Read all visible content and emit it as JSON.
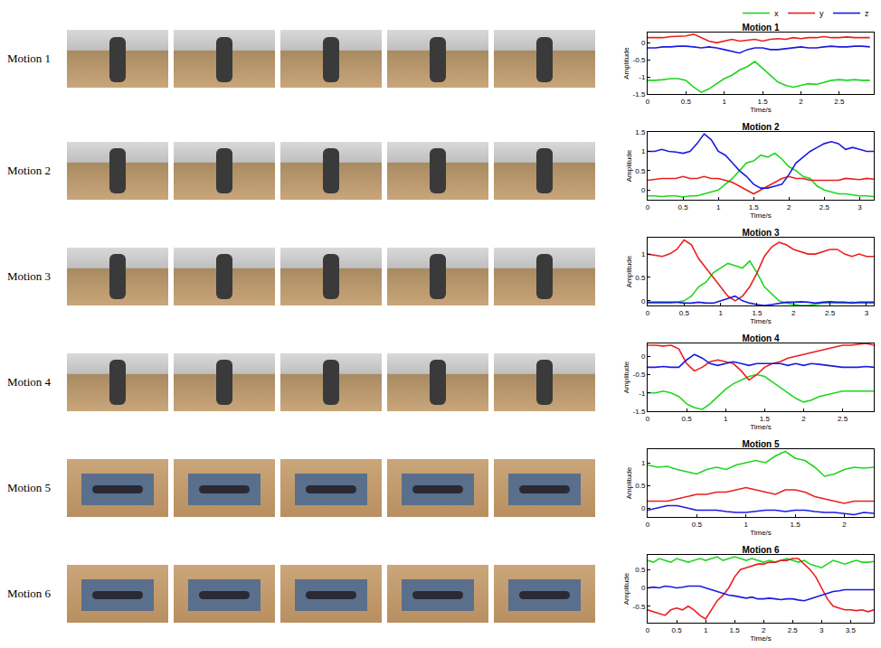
{
  "row_labels": [
    "Motion 1",
    "Motion 2",
    "Motion 3",
    "Motion 4",
    "Motion 5",
    "Motion 6"
  ],
  "chart_data": [
    {
      "type": "line",
      "title": "Motion 1",
      "x_label": "Time/s",
      "y_label": "Amplitude",
      "grid": false,
      "legend": "top right",
      "x": [
        0,
        0.1,
        0.2,
        0.3,
        0.4,
        0.5,
        0.6,
        0.7,
        0.8,
        0.9,
        1.0,
        1.1,
        1.2,
        1.3,
        1.4,
        1.5,
        1.6,
        1.7,
        1.8,
        1.9,
        2.0,
        2.1,
        2.2,
        2.3,
        2.4,
        2.5,
        2.6,
        2.7,
        2.8,
        2.9
      ],
      "series": [
        {
          "name": "x",
          "color": "#1fd61f",
          "values": [
            -1.1,
            -1.1,
            -1.08,
            -1.05,
            -1.05,
            -1.1,
            -1.3,
            -1.45,
            -1.35,
            -1.2,
            -1.05,
            -0.95,
            -0.8,
            -0.7,
            -0.55,
            -0.75,
            -0.95,
            -1.15,
            -1.25,
            -1.3,
            -1.25,
            -1.2,
            -1.22,
            -1.15,
            -1.1,
            -1.08,
            -1.1,
            -1.08,
            -1.1,
            -1.1
          ]
        },
        {
          "name": "y",
          "color": "#e8201e",
          "values": [
            0.15,
            0.15,
            0.15,
            0.18,
            0.2,
            0.2,
            0.25,
            0.15,
            0.05,
            0.0,
            0.05,
            0.1,
            0.05,
            0.08,
            0.1,
            0.05,
            0.1,
            0.12,
            0.1,
            0.15,
            0.12,
            0.15,
            0.15,
            0.18,
            0.15,
            0.15,
            0.17,
            0.15,
            0.15,
            0.15
          ]
        },
        {
          "name": "z",
          "color": "#1a1ae0",
          "values": [
            -0.15,
            -0.15,
            -0.12,
            -0.12,
            -0.1,
            -0.1,
            -0.12,
            -0.15,
            -0.12,
            -0.15,
            -0.2,
            -0.25,
            -0.3,
            -0.2,
            -0.15,
            -0.15,
            -0.2,
            -0.2,
            -0.18,
            -0.15,
            -0.12,
            -0.15,
            -0.15,
            -0.12,
            -0.1,
            -0.12,
            -0.12,
            -0.1,
            -0.1,
            -0.12
          ]
        }
      ],
      "xlim": [
        0,
        2.95
      ],
      "xticks": [
        0,
        0.5,
        1,
        1.5,
        2,
        2.5
      ],
      "ylim": [
        -1.5,
        0.3
      ],
      "yticks": [
        -1.5,
        -1,
        -0.5,
        0
      ]
    },
    {
      "type": "line",
      "title": "Motion 2",
      "x_label": "Time/s",
      "y_label": "Amplitude",
      "grid": false,
      "x": [
        0,
        0.1,
        0.2,
        0.3,
        0.4,
        0.5,
        0.6,
        0.7,
        0.8,
        0.9,
        1.0,
        1.1,
        1.2,
        1.3,
        1.4,
        1.5,
        1.6,
        1.7,
        1.8,
        1.9,
        2.0,
        2.1,
        2.2,
        2.3,
        2.4,
        2.5,
        2.6,
        2.7,
        2.8,
        2.9,
        3.0,
        3.1,
        3.2
      ],
      "series": [
        {
          "name": "x",
          "color": "#1fd61f",
          "values": [
            -0.15,
            -0.15,
            -0.17,
            -0.15,
            -0.15,
            -0.18,
            -0.15,
            -0.15,
            -0.1,
            -0.05,
            0.0,
            0.15,
            0.3,
            0.5,
            0.7,
            0.75,
            0.9,
            0.85,
            0.95,
            0.8,
            0.6,
            0.5,
            0.35,
            0.3,
            0.1,
            0.0,
            -0.05,
            -0.1,
            -0.1,
            -0.12,
            -0.15,
            -0.15,
            -0.17
          ]
        },
        {
          "name": "y",
          "color": "#e8201e",
          "values": [
            0.25,
            0.28,
            0.3,
            0.3,
            0.3,
            0.35,
            0.3,
            0.3,
            0.35,
            0.3,
            0.3,
            0.25,
            0.2,
            0.1,
            0.0,
            -0.1,
            0.0,
            0.1,
            0.2,
            0.3,
            0.35,
            0.3,
            0.3,
            0.25,
            0.25,
            0.25,
            0.25,
            0.25,
            0.3,
            0.28,
            0.27,
            0.3,
            0.28
          ]
        },
        {
          "name": "z",
          "color": "#1a1ae0",
          "values": [
            1.0,
            1.0,
            1.05,
            1.0,
            0.98,
            0.95,
            1.0,
            1.2,
            1.45,
            1.3,
            1.0,
            0.9,
            0.7,
            0.5,
            0.35,
            0.15,
            0.05,
            0.05,
            0.1,
            0.15,
            0.4,
            0.7,
            0.85,
            1.0,
            1.1,
            1.2,
            1.25,
            1.2,
            1.05,
            1.1,
            1.05,
            1.0,
            1.0
          ]
        }
      ],
      "xlim": [
        0,
        3.2
      ],
      "xticks": [
        0,
        0.5,
        1,
        1.5,
        2,
        2.5,
        3
      ],
      "ylim": [
        -0.25,
        1.5
      ],
      "yticks": [
        0,
        0.5,
        1,
        1.5
      ]
    },
    {
      "type": "line",
      "title": "Motion 3",
      "x_label": "Time/s",
      "y_label": "Amplitude",
      "grid": false,
      "x": [
        0,
        0.1,
        0.2,
        0.3,
        0.4,
        0.5,
        0.6,
        0.7,
        0.8,
        0.9,
        1.0,
        1.1,
        1.2,
        1.3,
        1.4,
        1.5,
        1.6,
        1.7,
        1.8,
        1.9,
        2.0,
        2.1,
        2.2,
        2.3,
        2.4,
        2.5,
        2.6,
        2.7,
        2.8,
        2.9,
        3.0,
        3.1
      ],
      "series": [
        {
          "name": "x",
          "color": "#1fd61f",
          "values": [
            -0.05,
            -0.05,
            -0.05,
            -0.05,
            -0.03,
            0.0,
            0.1,
            0.3,
            0.4,
            0.6,
            0.7,
            0.8,
            0.75,
            0.7,
            0.85,
            0.6,
            0.3,
            0.15,
            0.0,
            -0.05,
            -0.08,
            -0.1,
            -0.1,
            -0.08,
            -0.05,
            -0.05,
            -0.05,
            -0.05,
            -0.03,
            -0.05,
            -0.05,
            -0.05
          ]
        },
        {
          "name": "y",
          "color": "#e8201e",
          "values": [
            1.0,
            0.98,
            0.95,
            1.0,
            1.1,
            1.3,
            1.2,
            0.9,
            0.7,
            0.5,
            0.3,
            0.1,
            0.0,
            0.1,
            0.3,
            0.6,
            0.95,
            1.15,
            1.25,
            1.2,
            1.1,
            1.05,
            1.0,
            1.0,
            1.05,
            1.1,
            1.1,
            1.0,
            0.95,
            1.0,
            0.95,
            0.95
          ]
        },
        {
          "name": "z",
          "color": "#1a1ae0",
          "values": [
            -0.03,
            -0.03,
            -0.02,
            -0.03,
            -0.03,
            -0.05,
            -0.05,
            -0.03,
            -0.05,
            -0.05,
            0.0,
            0.05,
            0.1,
            0.0,
            -0.05,
            -0.08,
            -0.1,
            -0.08,
            -0.05,
            -0.03,
            -0.03,
            -0.02,
            -0.03,
            -0.05,
            -0.03,
            -0.02,
            -0.03,
            -0.03,
            -0.05,
            -0.03,
            -0.03,
            -0.03
          ]
        }
      ],
      "xlim": [
        0,
        3.1
      ],
      "xticks": [
        0,
        0.5,
        1,
        1.5,
        2,
        2.5,
        3
      ],
      "ylim": [
        -0.1,
        1.35
      ],
      "yticks": [
        0,
        0.5,
        1
      ]
    },
    {
      "type": "line",
      "title": "Motion 4",
      "x_label": "Time/s",
      "y_label": "Amplitude",
      "grid": false,
      "x": [
        0,
        0.1,
        0.2,
        0.3,
        0.4,
        0.5,
        0.6,
        0.7,
        0.8,
        0.9,
        1.0,
        1.1,
        1.2,
        1.3,
        1.4,
        1.5,
        1.6,
        1.7,
        1.8,
        1.9,
        2.0,
        2.1,
        2.2,
        2.3,
        2.4,
        2.5,
        2.6,
        2.7,
        2.8,
        2.9
      ],
      "series": [
        {
          "name": "x",
          "color": "#1fd61f",
          "values": [
            -1.0,
            -1.0,
            -0.95,
            -1.0,
            -1.1,
            -1.3,
            -1.4,
            -1.45,
            -1.3,
            -1.1,
            -0.9,
            -0.75,
            -0.65,
            -0.55,
            -0.5,
            -0.55,
            -0.7,
            -0.85,
            -1.0,
            -1.15,
            -1.25,
            -1.2,
            -1.1,
            -1.05,
            -1.0,
            -0.95,
            -0.95,
            -0.95,
            -0.95,
            -0.95
          ]
        },
        {
          "name": "y",
          "color": "#e8201e",
          "values": [
            0.3,
            0.3,
            0.28,
            0.3,
            0.2,
            -0.2,
            -0.4,
            -0.3,
            -0.15,
            -0.1,
            -0.15,
            -0.2,
            -0.4,
            -0.65,
            -0.5,
            -0.3,
            -0.2,
            -0.15,
            -0.05,
            0.0,
            0.05,
            0.1,
            0.15,
            0.2,
            0.25,
            0.3,
            0.3,
            0.32,
            0.35,
            0.3
          ]
        },
        {
          "name": "z",
          "color": "#1a1ae0",
          "values": [
            -0.3,
            -0.3,
            -0.28,
            -0.3,
            -0.3,
            -0.1,
            0.05,
            -0.05,
            -0.2,
            -0.25,
            -0.2,
            -0.15,
            -0.2,
            -0.25,
            -0.2,
            -0.2,
            -0.2,
            -0.2,
            -0.25,
            -0.2,
            -0.25,
            -0.2,
            -0.22,
            -0.25,
            -0.28,
            -0.3,
            -0.3,
            -0.3,
            -0.28,
            -0.3
          ]
        }
      ],
      "xlim": [
        0,
        2.9
      ],
      "xticks": [
        0,
        0.5,
        1,
        1.5,
        2,
        2.5
      ],
      "ylim": [
        -1.5,
        0.35
      ],
      "yticks": [
        -1.5,
        -1,
        -0.5,
        0
      ]
    },
    {
      "type": "line",
      "title": "Motion 5",
      "x_label": "Time/s",
      "y_label": "Amplitude",
      "grid": false,
      "x": [
        0,
        0.1,
        0.2,
        0.3,
        0.4,
        0.5,
        0.6,
        0.7,
        0.8,
        0.9,
        1.0,
        1.1,
        1.2,
        1.3,
        1.4,
        1.5,
        1.6,
        1.7,
        1.8,
        1.9,
        2.0,
        2.1,
        2.2,
        2.3
      ],
      "series": [
        {
          "name": "x",
          "color": "#1fd61f",
          "values": [
            0.95,
            0.9,
            0.92,
            0.85,
            0.8,
            0.75,
            0.85,
            0.9,
            0.85,
            0.95,
            1.0,
            1.05,
            1.0,
            1.15,
            1.25,
            1.1,
            1.05,
            0.9,
            0.7,
            0.75,
            0.85,
            0.9,
            0.88,
            0.9
          ]
        },
        {
          "name": "y",
          "color": "#e8201e",
          "values": [
            0.15,
            0.15,
            0.15,
            0.2,
            0.25,
            0.3,
            0.3,
            0.35,
            0.35,
            0.4,
            0.45,
            0.4,
            0.35,
            0.3,
            0.4,
            0.4,
            0.35,
            0.25,
            0.2,
            0.15,
            0.1,
            0.15,
            0.15,
            0.15
          ]
        },
        {
          "name": "z",
          "color": "#1a1ae0",
          "values": [
            -0.05,
            0.0,
            0.05,
            0.05,
            0.0,
            -0.05,
            -0.05,
            -0.05,
            -0.08,
            -0.1,
            -0.1,
            -0.08,
            -0.05,
            -0.05,
            -0.08,
            -0.05,
            -0.05,
            -0.08,
            -0.1,
            -0.1,
            -0.12,
            -0.15,
            -0.1,
            -0.12
          ]
        }
      ],
      "xlim": [
        0,
        2.3
      ],
      "xticks": [
        0,
        0.5,
        1,
        1.5,
        2
      ],
      "ylim": [
        -0.2,
        1.3
      ],
      "yticks": [
        0,
        0.5,
        1
      ]
    },
    {
      "type": "line",
      "title": "Motion 6",
      "x_label": "Time/s",
      "y_label": "Amplitude",
      "grid": false,
      "x": [
        0,
        0.1,
        0.2,
        0.3,
        0.4,
        0.5,
        0.6,
        0.7,
        0.8,
        0.9,
        1.0,
        1.1,
        1.2,
        1.3,
        1.4,
        1.5,
        1.6,
        1.7,
        1.8,
        1.9,
        2.0,
        2.1,
        2.2,
        2.3,
        2.4,
        2.5,
        2.6,
        2.7,
        2.8,
        2.9,
        3.0,
        3.1,
        3.2,
        3.3,
        3.4,
        3.5,
        3.6,
        3.7,
        3.8,
        3.9
      ],
      "series": [
        {
          "name": "x",
          "color": "#1fd61f",
          "values": [
            0.75,
            0.7,
            0.8,
            0.75,
            0.7,
            0.8,
            0.75,
            0.7,
            0.75,
            0.8,
            0.75,
            0.8,
            0.85,
            0.75,
            0.8,
            0.85,
            0.8,
            0.75,
            0.8,
            0.75,
            0.7,
            0.75,
            0.7,
            0.75,
            0.8,
            0.75,
            0.7,
            0.75,
            0.65,
            0.6,
            0.55,
            0.65,
            0.75,
            0.7,
            0.65,
            0.7,
            0.75,
            0.7,
            0.7,
            0.72
          ]
        },
        {
          "name": "y",
          "color": "#e8201e",
          "values": [
            -0.6,
            -0.65,
            -0.7,
            -0.75,
            -0.6,
            -0.55,
            -0.6,
            -0.5,
            -0.6,
            -0.75,
            -0.85,
            -0.6,
            -0.35,
            -0.2,
            0.0,
            0.3,
            0.5,
            0.55,
            0.6,
            0.65,
            0.65,
            0.7,
            0.7,
            0.75,
            0.75,
            0.8,
            0.8,
            0.65,
            0.5,
            0.3,
            0.0,
            -0.3,
            -0.5,
            -0.55,
            -0.6,
            -0.6,
            -0.62,
            -0.6,
            -0.65,
            -0.6
          ]
        },
        {
          "name": "z",
          "color": "#1a1ae0",
          "values": [
            0.0,
            0.02,
            0.0,
            0.05,
            0.03,
            0.0,
            0.02,
            0.05,
            0.05,
            0.05,
            0.0,
            -0.05,
            -0.1,
            -0.15,
            -0.2,
            -0.22,
            -0.25,
            -0.28,
            -0.25,
            -0.3,
            -0.3,
            -0.28,
            -0.3,
            -0.32,
            -0.3,
            -0.3,
            -0.33,
            -0.35,
            -0.3,
            -0.25,
            -0.2,
            -0.15,
            -0.1,
            -0.08,
            -0.05,
            -0.05,
            -0.05,
            -0.05,
            -0.05,
            -0.05
          ]
        }
      ],
      "xlim": [
        0,
        3.9
      ],
      "xticks": [
        0,
        0.5,
        1,
        1.5,
        2,
        2.5,
        3,
        3.5
      ],
      "ylim": [
        -0.95,
        0.9
      ],
      "yticks": [
        -0.5,
        0,
        0.5
      ]
    }
  ]
}
